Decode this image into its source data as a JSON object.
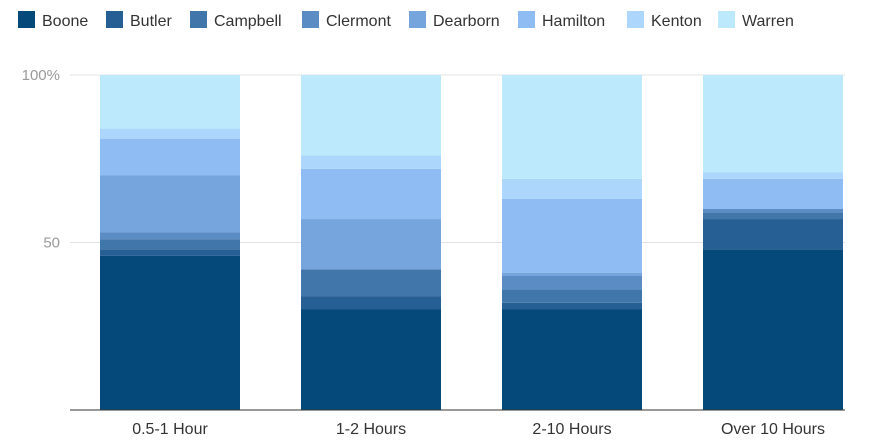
{
  "chart_data": {
    "type": "bar",
    "stacked": true,
    "normalized": true,
    "categories": [
      "0.5-1 Hour",
      "1-2 Hours",
      "2-10 Hours",
      "Over 10 Hours"
    ],
    "series": [
      {
        "name": "Boone",
        "color": "#05497a",
        "values": [
          46,
          30,
          30,
          48
        ]
      },
      {
        "name": "Butler",
        "color": "#265f93",
        "values": [
          2,
          4,
          2,
          9
        ]
      },
      {
        "name": "Campbell",
        "color": "#4176ab",
        "values": [
          3,
          8,
          4,
          2
        ]
      },
      {
        "name": "Clermont",
        "color": "#5b8dc4",
        "values": [
          2,
          0,
          4,
          1
        ]
      },
      {
        "name": "Dearborn",
        "color": "#75a5dc",
        "values": [
          17,
          15,
          1,
          0
        ]
      },
      {
        "name": "Hamilton",
        "color": "#8fbcf2",
        "values": [
          11,
          15,
          22,
          9
        ]
      },
      {
        "name": "Kenton",
        "color": "#acd6fc",
        "values": [
          3,
          4,
          6,
          2
        ]
      },
      {
        "name": "Warren",
        "color": "#bde9fc",
        "values": [
          16,
          24,
          31,
          29
        ]
      }
    ],
    "y_ticks": [
      {
        "value": 50,
        "label": "50"
      },
      {
        "value": 100,
        "label": "100%"
      }
    ],
    "ylim": [
      0,
      100
    ],
    "grid": true,
    "legend_position": "top-left"
  }
}
